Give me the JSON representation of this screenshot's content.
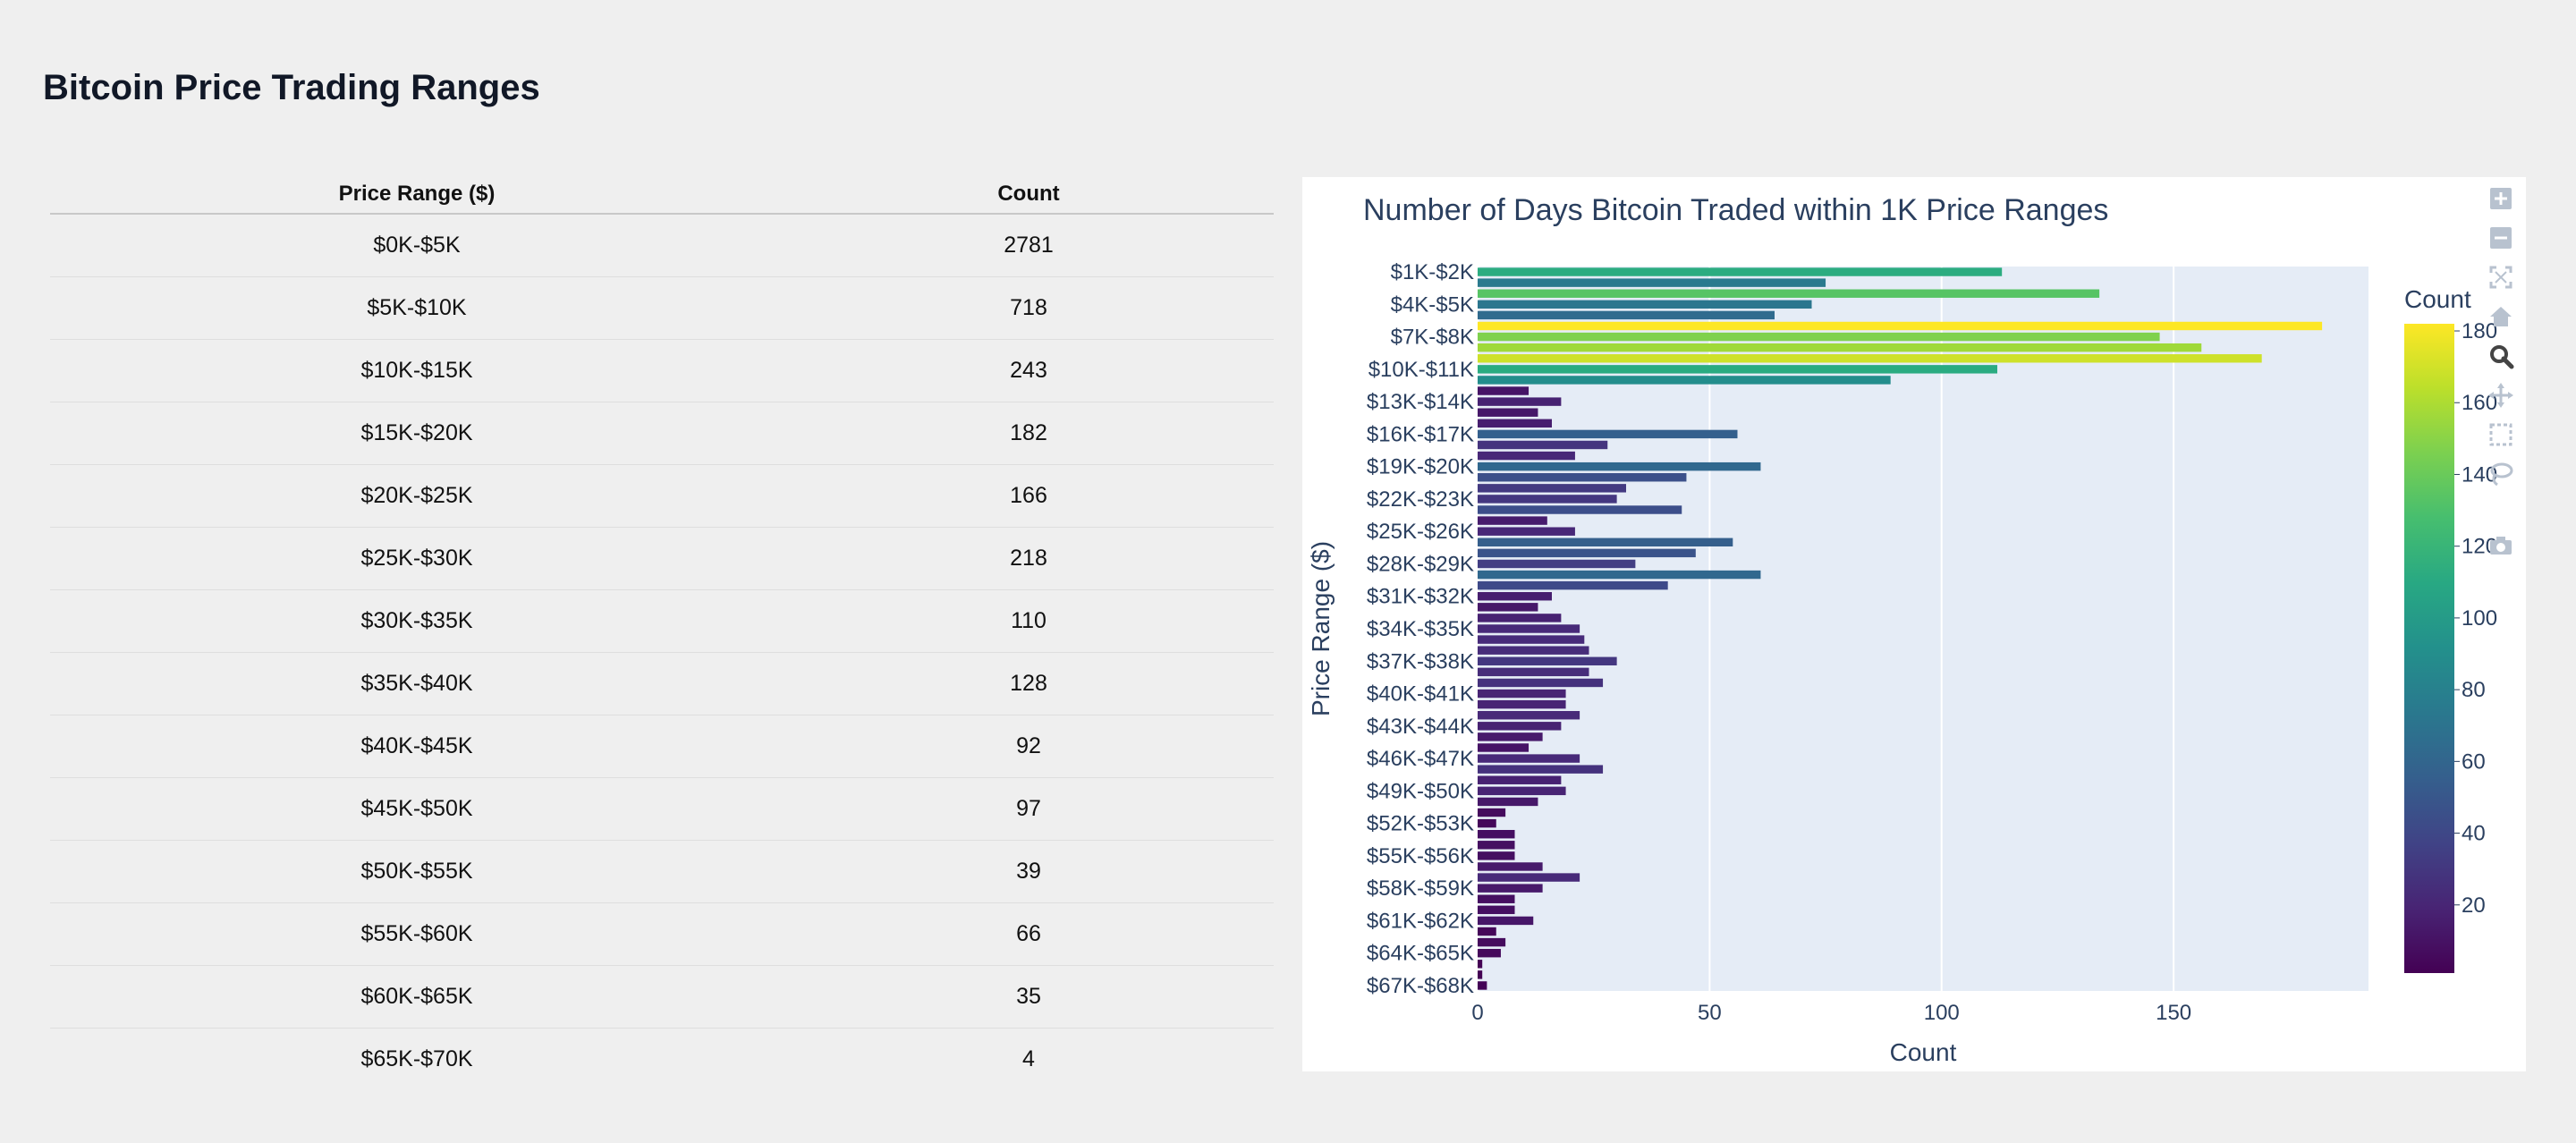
{
  "page": {
    "title": "Bitcoin Price Trading Ranges"
  },
  "table": {
    "headers": [
      "Price Range ($)",
      "Count"
    ],
    "rows": [
      [
        "$0K-$5K",
        "2781"
      ],
      [
        "$5K-$10K",
        "718"
      ],
      [
        "$10K-$15K",
        "243"
      ],
      [
        "$15K-$20K",
        "182"
      ],
      [
        "$20K-$25K",
        "166"
      ],
      [
        "$25K-$30K",
        "218"
      ],
      [
        "$30K-$35K",
        "110"
      ],
      [
        "$35K-$40K",
        "128"
      ],
      [
        "$40K-$45K",
        "92"
      ],
      [
        "$45K-$50K",
        "97"
      ],
      [
        "$50K-$55K",
        "39"
      ],
      [
        "$55K-$60K",
        "66"
      ],
      [
        "$60K-$65K",
        "35"
      ],
      [
        "$65K-$70K",
        "4"
      ]
    ]
  },
  "modebar": {
    "buttons": [
      "zoom-in",
      "zoom-out",
      "autoscale",
      "reset-axes",
      "zoom",
      "pan",
      "box-select",
      "lasso-select",
      "download-plot"
    ]
  },
  "chart_data": {
    "type": "bar",
    "orientation": "horizontal",
    "title": "Number of Days Bitcoin Traded within 1K Price Ranges",
    "xlabel": "Count",
    "ylabel": "Price Range ($)",
    "xlim": [
      0,
      192
    ],
    "xticks": [
      0,
      50,
      100,
      150
    ],
    "categories": [
      "$1K-$2K",
      "$2K-$3K",
      "$3K-$4K",
      "$4K-$5K",
      "$5K-$6K",
      "$6K-$7K",
      "$7K-$8K",
      "$8K-$9K",
      "$9K-$10K",
      "$10K-$11K",
      "$11K-$12K",
      "$12K-$13K",
      "$13K-$14K",
      "$14K-$15K",
      "$15K-$16K",
      "$16K-$17K",
      "$17K-$18K",
      "$18K-$19K",
      "$19K-$20K",
      "$20K-$21K",
      "$21K-$22K",
      "$22K-$23K",
      "$23K-$24K",
      "$24K-$25K",
      "$25K-$26K",
      "$26K-$27K",
      "$27K-$28K",
      "$28K-$29K",
      "$29K-$30K",
      "$30K-$31K",
      "$31K-$32K",
      "$32K-$33K",
      "$33K-$34K",
      "$34K-$35K",
      "$35K-$36K",
      "$36K-$37K",
      "$37K-$38K",
      "$38K-$39K",
      "$39K-$40K",
      "$40K-$41K",
      "$41K-$42K",
      "$42K-$43K",
      "$43K-$44K",
      "$44K-$45K",
      "$45K-$46K",
      "$46K-$47K",
      "$47K-$48K",
      "$48K-$49K",
      "$49K-$50K",
      "$50K-$51K",
      "$51K-$52K",
      "$52K-$53K",
      "$53K-$54K",
      "$54K-$55K",
      "$55K-$56K",
      "$56K-$57K",
      "$57K-$58K",
      "$58K-$59K",
      "$59K-$60K",
      "$60K-$61K",
      "$61K-$62K",
      "$62K-$63K",
      "$63K-$64K",
      "$64K-$65K",
      "$65K-$66K",
      "$66K-$67K",
      "$67K-$68K"
    ],
    "tick_labels": [
      "$1K-$2K",
      "$4K-$5K",
      "$7K-$8K",
      "$10K-$11K",
      "$13K-$14K",
      "$16K-$17K",
      "$19K-$20K",
      "$22K-$23K",
      "$25K-$26K",
      "$28K-$29K",
      "$31K-$32K",
      "$34K-$35K",
      "$37K-$38K",
      "$40K-$41K",
      "$43K-$44K",
      "$46K-$47K",
      "$49K-$50K",
      "$52K-$53K",
      "$55K-$56K",
      "$58K-$59K",
      "$61K-$62K",
      "$64K-$65K",
      "$67K-$68K"
    ],
    "values": [
      113,
      75,
      134,
      72,
      64,
      182,
      147,
      156,
      169,
      112,
      89,
      11,
      18,
      13,
      16,
      56,
      28,
      21,
      61,
      45,
      32,
      30,
      44,
      15,
      21,
      55,
      47,
      34,
      61,
      41,
      16,
      13,
      18,
      22,
      23,
      24,
      30,
      24,
      27,
      19,
      19,
      22,
      18,
      14,
      11,
      22,
      27,
      18,
      19,
      13,
      6,
      4,
      8,
      8,
      8,
      14,
      22,
      14,
      8,
      8,
      12,
      4,
      6,
      5,
      1,
      1,
      2
    ],
    "colorbar": {
      "title": "Count",
      "range": [
        1,
        182
      ],
      "ticks": [
        20,
        40,
        60,
        80,
        100,
        120,
        140,
        160,
        180
      ],
      "colorscale": "Viridis"
    },
    "colors": {
      "plot_bg": "#e5ecf6",
      "text": "#2a3f5f",
      "grid": "#ffffff"
    }
  }
}
